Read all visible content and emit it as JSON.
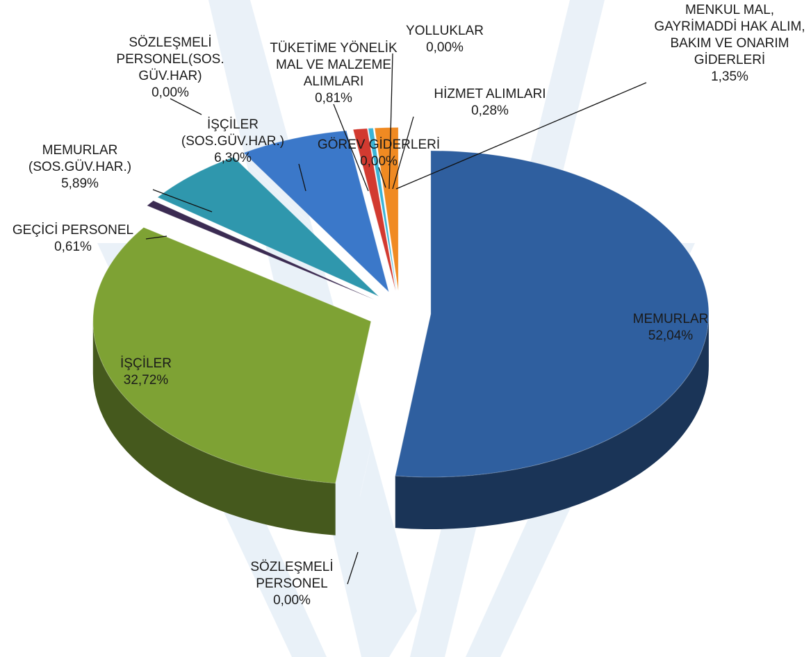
{
  "chart_data": {
    "type": "pie3d",
    "categories": [
      "MEMURLAR",
      "SÖZLEŞMELİ PERSONEL",
      "İŞÇİLER",
      "GEÇİCİ PERSONEL",
      "MEMURLAR (SOS.GÜV.HAR.)",
      "SÖZLEŞMELİ PERSONEL(SOS. GÜV.HAR)",
      "İŞÇİLER (SOS.GÜV.HAR.)",
      "TÜKETİME YÖNELİK MAL VE MALZEME ALIMLARI",
      "GÖREV GİDERLERİ",
      "YOLLUKLAR",
      "HİZMET ALIMLARI",
      "MENKUL MAL, GAYRİMADDİ HAK ALIM, BAKIM VE ONARIM GİDERLERİ"
    ],
    "values": [
      52.04,
      0,
      32.72,
      0.61,
      5.89,
      0,
      6.3,
      0.81,
      0,
      0,
      0.28,
      1.35
    ],
    "value_labels": [
      "52,04%",
      "0,00%",
      "32,72%",
      "0,61%",
      "5,89%",
      "0,00%",
      "6,30%",
      "0,81%",
      "0,00%",
      "0,00%",
      "0,28%",
      "1,35%"
    ],
    "colors": [
      "#2f5f9f",
      "#a52a2a",
      "#7ea234",
      "#3b2b52",
      "#2f97ad",
      "#8b3b0b",
      "#3b78c9",
      "#d23a30",
      "#6a8f30",
      "#3aa0c0",
      "#3ab4d6",
      "#f08a22"
    ]
  }
}
